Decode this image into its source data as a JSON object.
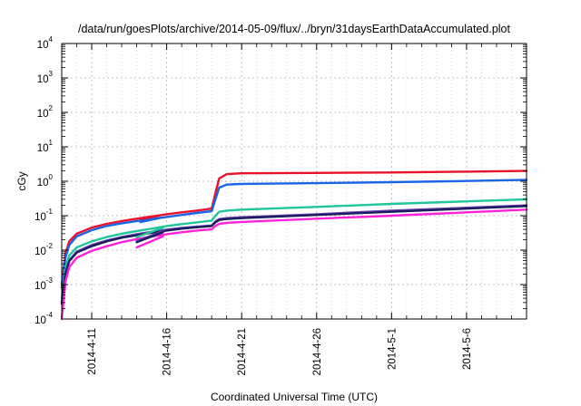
{
  "chart_data": {
    "type": "line",
    "title": "/data/run/goesPlots/archive/2014-05-09/flux/../bryn/31daysEarthDataAccumulated.plot",
    "xlabel": "Coordinated Universal Time (UTC)",
    "ylabel": "cGy",
    "y_scale": "log",
    "ylim": [
      0.0001,
      10000
    ],
    "xlim": [
      "2014-04-09",
      "2014-05-10"
    ],
    "x_ticks": [
      "2014-4-11",
      "2014-4-16",
      "2014-4-21",
      "2014-4-26",
      "2014-5-1",
      "2014-5-6"
    ],
    "y_ticks": [
      {
        "base": "10",
        "exp": "-4"
      },
      {
        "base": "10",
        "exp": "-3"
      },
      {
        "base": "10",
        "exp": "-2"
      },
      {
        "base": "10",
        "exp": "-1"
      },
      {
        "base": "10",
        "exp": "0"
      },
      {
        "base": "10",
        "exp": "1"
      },
      {
        "base": "10",
        "exp": "2"
      },
      {
        "base": "10",
        "exp": "3"
      },
      {
        "base": "10",
        "exp": "4"
      }
    ],
    "grid": true,
    "legend": "none",
    "series": [
      {
        "color": "#e8132a",
        "points": [
          [
            "2014-04-09T00:00",
            0.001
          ],
          [
            "2014-04-09T06:00",
            0.008
          ],
          [
            "2014-04-09T12:00",
            0.018
          ],
          [
            "2014-04-10T00:00",
            0.03
          ],
          [
            "2014-04-11T00:00",
            0.045
          ],
          [
            "2014-04-12T00:00",
            0.058
          ],
          [
            "2014-04-13T00:00",
            0.07
          ],
          [
            "2014-04-14T00:00",
            0.082
          ],
          [
            "2014-04-15T00:00",
            0.095
          ],
          [
            "2014-04-16T00:00",
            0.11
          ],
          [
            "2014-04-17T00:00",
            0.125
          ],
          [
            "2014-04-18T00:00",
            0.14
          ],
          [
            "2014-04-19T00:00",
            0.16
          ],
          [
            "2014-04-19T06:00",
            0.45
          ],
          [
            "2014-04-19T12:00",
            1.2
          ],
          [
            "2014-04-20T00:00",
            1.6
          ],
          [
            "2014-04-21T00:00",
            1.7
          ],
          [
            "2014-04-26T00:00",
            1.75
          ],
          [
            "2014-05-01T00:00",
            1.8
          ],
          [
            "2014-05-06T00:00",
            1.9
          ],
          [
            "2014-05-10T00:00",
            2.0
          ]
        ]
      },
      {
        "color": "#1a64e6",
        "points": [
          [
            "2014-04-09T00:00",
            0.0008
          ],
          [
            "2014-04-09T06:00",
            0.006
          ],
          [
            "2014-04-09T12:00",
            0.014
          ],
          [
            "2014-04-10T00:00",
            0.025
          ],
          [
            "2014-04-11T00:00",
            0.038
          ],
          [
            "2014-04-12T00:00",
            0.05
          ],
          [
            "2014-04-13T00:00",
            0.06
          ],
          [
            "2014-04-14T00:00",
            0.07
          ],
          [
            "2014-04-15T00:00",
            0.08
          ],
          [
            "2014-04-16T00:00",
            0.092
          ],
          [
            "2014-04-17T00:00",
            0.105
          ],
          [
            "2014-04-18T00:00",
            0.12
          ],
          [
            "2014-04-19T00:00",
            0.135
          ],
          [
            "2014-04-19T06:00",
            0.3
          ],
          [
            "2014-04-19T12:00",
            0.65
          ],
          [
            "2014-04-20T00:00",
            0.8
          ],
          [
            "2014-04-21T00:00",
            0.84
          ],
          [
            "2014-04-26T00:00",
            0.88
          ],
          [
            "2014-05-01T00:00",
            0.94
          ],
          [
            "2014-05-06T00:00",
            1.02
          ],
          [
            "2014-05-10T00:00",
            1.1
          ]
        ]
      },
      {
        "color": "#1fc79a",
        "points": [
          [
            "2014-04-09T00:00",
            0.0004
          ],
          [
            "2014-04-09T06:00",
            0.003
          ],
          [
            "2014-04-09T12:00",
            0.007
          ],
          [
            "2014-04-10T00:00",
            0.012
          ],
          [
            "2014-04-11T00:00",
            0.018
          ],
          [
            "2014-04-12T00:00",
            0.024
          ],
          [
            "2014-04-13T00:00",
            0.03
          ],
          [
            "2014-04-14T00:00",
            0.036
          ],
          [
            "2014-04-15T00:00",
            0.042
          ],
          [
            "2014-04-16T00:00",
            0.05
          ],
          [
            "2014-04-17T00:00",
            0.057
          ],
          [
            "2014-04-18T00:00",
            0.064
          ],
          [
            "2014-04-19T00:00",
            0.072
          ],
          [
            "2014-04-19T06:00",
            0.1
          ],
          [
            "2014-04-19T12:00",
            0.13
          ],
          [
            "2014-04-20T00:00",
            0.14
          ],
          [
            "2014-04-21T00:00",
            0.15
          ],
          [
            "2014-04-26T00:00",
            0.18
          ],
          [
            "2014-05-01T00:00",
            0.22
          ],
          [
            "2014-05-06T00:00",
            0.26
          ],
          [
            "2014-05-10T00:00",
            0.3
          ]
        ]
      },
      {
        "color": "#6b3fb0",
        "points": [
          [
            "2014-04-09T00:00",
            0.0003
          ],
          [
            "2014-04-09T06:00",
            0.0022
          ],
          [
            "2014-04-09T12:00",
            0.005
          ],
          [
            "2014-04-10T00:00",
            0.009
          ],
          [
            "2014-04-11T00:00",
            0.014
          ],
          [
            "2014-04-12T00:00",
            0.019
          ],
          [
            "2014-04-13T00:00",
            0.024
          ],
          [
            "2014-04-14T00:00",
            0.029
          ],
          [
            "2014-04-15T00:00",
            0.034
          ],
          [
            "2014-04-16T00:00",
            0.039
          ],
          [
            "2014-04-17T00:00",
            0.044
          ],
          [
            "2014-04-18T00:00",
            0.048
          ],
          [
            "2014-04-19T00:00",
            0.052
          ],
          [
            "2014-04-19T06:00",
            0.068
          ],
          [
            "2014-04-19T12:00",
            0.08
          ],
          [
            "2014-04-20T00:00",
            0.085
          ],
          [
            "2014-04-21T00:00",
            0.09
          ],
          [
            "2014-04-26T00:00",
            0.11
          ],
          [
            "2014-05-01T00:00",
            0.14
          ],
          [
            "2014-05-06T00:00",
            0.17
          ],
          [
            "2014-05-10T00:00",
            0.2
          ]
        ]
      },
      {
        "color": "#1c1c60",
        "points": [
          [
            "2014-04-09T00:00",
            0.00028
          ],
          [
            "2014-04-09T06:00",
            0.002
          ],
          [
            "2014-04-09T12:00",
            0.0048
          ],
          [
            "2014-04-10T00:00",
            0.0085
          ],
          [
            "2014-04-11T00:00",
            0.013
          ],
          [
            "2014-04-12T00:00",
            0.018
          ],
          [
            "2014-04-13T00:00",
            0.023
          ],
          [
            "2014-04-14T00:00",
            0.027
          ],
          [
            "2014-04-15T00:00",
            0.032
          ],
          [
            "2014-04-16T00:00",
            0.037
          ],
          [
            "2014-04-17T00:00",
            0.042
          ],
          [
            "2014-04-18T00:00",
            0.046
          ],
          [
            "2014-04-19T00:00",
            0.05
          ],
          [
            "2014-04-19T06:00",
            0.064
          ],
          [
            "2014-04-19T12:00",
            0.075
          ],
          [
            "2014-04-20T00:00",
            0.08
          ],
          [
            "2014-04-21T00:00",
            0.085
          ],
          [
            "2014-04-26T00:00",
            0.105
          ],
          [
            "2014-05-01T00:00",
            0.13
          ],
          [
            "2014-05-06T00:00",
            0.16
          ],
          [
            "2014-05-10T00:00",
            0.19
          ]
        ]
      },
      {
        "color": "#ff22d8",
        "points": [
          [
            "2014-04-09T00:00",
            0.0001
          ],
          [
            "2014-04-09T06:00",
            0.0012
          ],
          [
            "2014-04-09T12:00",
            0.0032
          ],
          [
            "2014-04-10T00:00",
            0.006
          ],
          [
            "2014-04-11T00:00",
            0.0095
          ],
          [
            "2014-04-12T00:00",
            0.013
          ],
          [
            "2014-04-13T00:00",
            0.017
          ],
          [
            "2014-04-14T00:00",
            0.021
          ],
          [
            "2014-04-15T00:00",
            0.025
          ],
          [
            "2014-04-16T00:00",
            0.029
          ],
          [
            "2014-04-17T00:00",
            0.033
          ],
          [
            "2014-04-18T00:00",
            0.037
          ],
          [
            "2014-04-19T00:00",
            0.04
          ],
          [
            "2014-04-19T06:00",
            0.05
          ],
          [
            "2014-04-19T12:00",
            0.058
          ],
          [
            "2014-04-20T00:00",
            0.062
          ],
          [
            "2014-04-21T00:00",
            0.066
          ],
          [
            "2014-04-26T00:00",
            0.082
          ],
          [
            "2014-05-01T00:00",
            0.1
          ],
          [
            "2014-05-06T00:00",
            0.125
          ],
          [
            "2014-05-10T00:00",
            0.15
          ]
        ]
      },
      {
        "color": "#e8132a",
        "points": [
          [
            "2014-04-14T06:00",
            0.08
          ],
          [
            "2014-04-15T12:00",
            0.1
          ]
        ]
      },
      {
        "color": "#1a64e6",
        "points": [
          [
            "2014-04-14T06:00",
            0.065
          ],
          [
            "2014-04-15T12:00",
            0.085
          ]
        ]
      },
      {
        "color": "#1fc79a",
        "points": [
          [
            "2014-04-14T00:00",
            0.024
          ],
          [
            "2014-04-15T18:00",
            0.045
          ]
        ]
      },
      {
        "color": "#6b3fb0",
        "points": [
          [
            "2014-04-14T00:00",
            0.018
          ],
          [
            "2014-04-15T18:00",
            0.036
          ]
        ]
      },
      {
        "color": "#1c1c60",
        "points": [
          [
            "2014-04-14T00:00",
            0.017
          ],
          [
            "2014-04-15T18:00",
            0.033
          ]
        ]
      },
      {
        "color": "#ff22d8",
        "points": [
          [
            "2014-04-14T00:00",
            0.012
          ],
          [
            "2014-04-15T18:00",
            0.025
          ]
        ]
      }
    ]
  }
}
